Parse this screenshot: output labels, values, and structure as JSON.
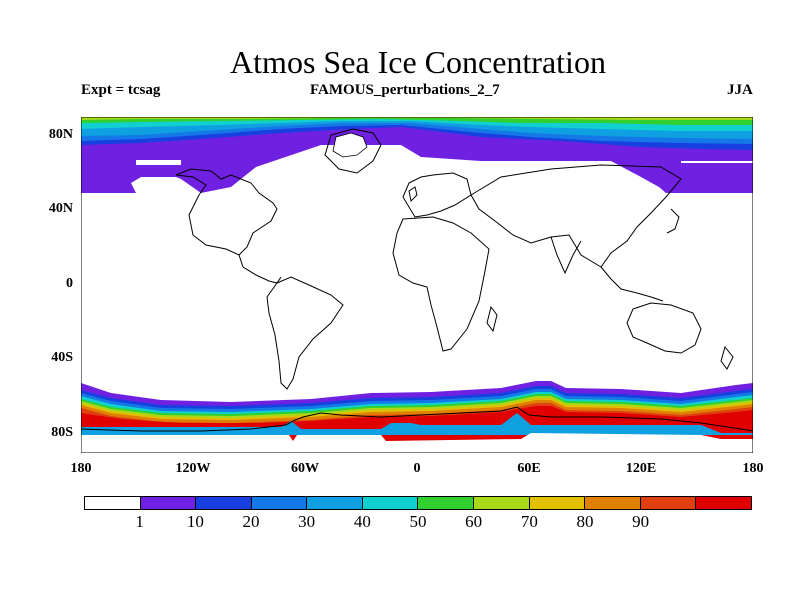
{
  "title": "Atmos Sea Ice Concentration",
  "subtitle_left": "Expt = tcsag",
  "subtitle_center": "FAMOUS_perturbations_2_7",
  "subtitle_right": "JJA",
  "lat_labels": [
    "80N",
    "40N",
    "0",
    "40S",
    "80S"
  ],
  "lon_labels": [
    "180",
    "120W",
    "60W",
    "0",
    "60E",
    "120E",
    "180"
  ],
  "colorbar_labels": [
    "1",
    "10",
    "20",
    "30",
    "40",
    "50",
    "60",
    "70",
    "80",
    "90"
  ],
  "colorbar_colors": [
    "#ffffff",
    "#7020e0",
    "#1840e0",
    "#1478e6",
    "#0ea0e0",
    "#10d0d0",
    "#30d030",
    "#a8d818",
    "#e0c000",
    "#e08000",
    "#e04010",
    "#e00000"
  ],
  "chart_data": {
    "type": "map",
    "variable": "Atmos Sea Ice Concentration",
    "units": "%",
    "projection": "cylindrical equidistant",
    "lon_range": [
      -180,
      180
    ],
    "lat_range": [
      -90,
      90
    ],
    "colorbar_levels": [
      1,
      10,
      20,
      30,
      40,
      50,
      60,
      70,
      80,
      90
    ]
  }
}
